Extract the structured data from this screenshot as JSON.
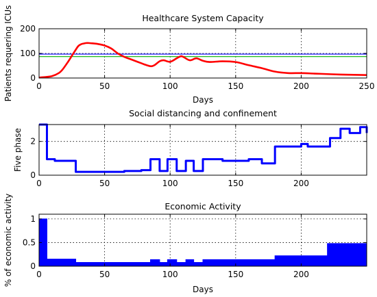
{
  "chart_data": [
    {
      "id": "capacity",
      "type": "line",
      "title": "Healthcare System Capacity",
      "xlabel": "Days",
      "ylabel": "Patients requering ICUs",
      "xlim": [
        0,
        250
      ],
      "ylim": [
        0,
        200
      ],
      "xticks": [
        0,
        50,
        100,
        150,
        200,
        250
      ],
      "yticks": [
        0,
        100,
        200
      ],
      "grid": true,
      "reference_lines": [
        {
          "y": 97,
          "color": "#0000ff"
        },
        {
          "y": 87,
          "color": "#00b000"
        }
      ],
      "series": [
        {
          "color": "#ff0000",
          "x": [
            0,
            5,
            10,
            15,
            18,
            22,
            25,
            28,
            30,
            32,
            34,
            36,
            38,
            40,
            42,
            45,
            50,
            55,
            60,
            65,
            70,
            75,
            80,
            85,
            88,
            92,
            95,
            100,
            105,
            108,
            110,
            115,
            120,
            125,
            130,
            140,
            150,
            160,
            170,
            180,
            190,
            200,
            210,
            220,
            230,
            240,
            250
          ],
          "y": [
            2,
            4,
            8,
            20,
            35,
            65,
            90,
            115,
            130,
            137,
            140,
            142,
            142,
            141,
            140,
            138,
            132,
            120,
            100,
            86,
            76,
            66,
            56,
            48,
            52,
            68,
            72,
            66,
            80,
            88,
            86,
            72,
            80,
            70,
            65,
            68,
            65,
            52,
            40,
            26,
            20,
            20,
            18,
            16,
            14,
            13,
            12
          ]
        }
      ]
    },
    {
      "id": "distancing",
      "type": "line",
      "title": "Social distancing and confinement",
      "xlabel": "",
      "ylabel": "Five phase",
      "xlim": [
        0,
        250
      ],
      "ylim": [
        0,
        3
      ],
      "xticks": [
        0,
        50,
        100,
        150,
        200
      ],
      "yticks": [
        0,
        2
      ],
      "grid": true,
      "series": [
        {
          "color": "#0000ff",
          "step": true,
          "x": [
            0,
            6,
            12,
            18,
            28,
            45,
            65,
            78,
            85,
            92,
            98,
            105,
            112,
            118,
            125,
            132,
            140,
            148,
            155,
            160,
            170,
            180,
            192,
            200,
            205,
            215,
            222,
            230,
            237,
            245,
            250
          ],
          "y": [
            3.0,
            0.95,
            0.85,
            0.85,
            0.2,
            0.2,
            0.25,
            0.3,
            0.95,
            0.25,
            0.95,
            0.25,
            0.85,
            0.25,
            0.95,
            0.95,
            0.85,
            0.85,
            0.85,
            0.95,
            0.7,
            1.7,
            1.7,
            1.85,
            1.7,
            1.7,
            2.2,
            2.75,
            2.5,
            2.85,
            2.5
          ]
        }
      ]
    },
    {
      "id": "economic",
      "type": "area",
      "title": "Economic Activity",
      "xlabel": "Days",
      "ylabel": "% of economic activity",
      "xlim": [
        0,
        250
      ],
      "ylim": [
        0,
        1.1
      ],
      "xticks": [
        0,
        50,
        100,
        150,
        200
      ],
      "yticks": [
        0,
        0.5,
        1
      ],
      "ytick_labels": [
        "0",
        "0.5",
        "1"
      ],
      "grid": true,
      "series": [
        {
          "color": "#0000ff",
          "step": true,
          "x": [
            0,
            6,
            12,
            28,
            45,
            65,
            85,
            92,
            98,
            105,
            112,
            118,
            125,
            132,
            140,
            155,
            170,
            180,
            200,
            210,
            220,
            230,
            240,
            250
          ],
          "y": [
            1.0,
            0.15,
            0.15,
            0.08,
            0.08,
            0.08,
            0.14,
            0.08,
            0.14,
            0.08,
            0.14,
            0.08,
            0.14,
            0.14,
            0.14,
            0.14,
            0.14,
            0.22,
            0.22,
            0.22,
            0.48,
            0.48,
            0.48,
            0.5
          ]
        }
      ]
    }
  ]
}
